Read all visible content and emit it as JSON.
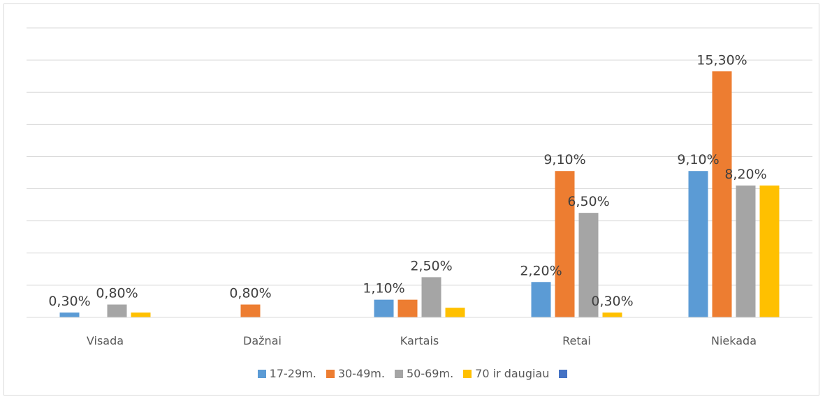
{
  "chart_data": {
    "type": "bar",
    "categories": [
      "Visada",
      "Dažnai",
      "Kartais",
      "Retai",
      "Niekada"
    ],
    "series": [
      {
        "name": "17-29m.",
        "color": "#5b9bd5",
        "values": [
          0.3,
          null,
          1.1,
          2.2,
          9.1
        ],
        "labels": [
          "0,30%",
          "",
          "1,10%",
          "2,20%",
          "9,10%"
        ]
      },
      {
        "name": "30-49m.",
        "color": "#ed7d31",
        "values": [
          null,
          0.8,
          1.1,
          9.1,
          15.3
        ],
        "labels": [
          "",
          "0,80%",
          "",
          "9,10%",
          "15,30%"
        ]
      },
      {
        "name": "50-69m.",
        "color": "#a5a5a5",
        "values": [
          0.8,
          null,
          2.5,
          6.5,
          8.2
        ],
        "labels": [
          "0,80%",
          "",
          "2,50%",
          "6,50%",
          "8,20%"
        ]
      },
      {
        "name": "70 ir daugiau",
        "color": "#ffc000",
        "values": [
          0.3,
          null,
          0.6,
          0.3,
          8.2
        ],
        "labels": [
          "",
          "",
          "",
          "0,30%",
          ""
        ]
      },
      {
        "name": "",
        "color": "#4472c4",
        "values": [
          null,
          null,
          null,
          null,
          null
        ],
        "labels": [
          "",
          "",
          "",
          "",
          ""
        ]
      }
    ],
    "ylim": [
      0,
      18
    ],
    "grid": true,
    "legend_position": "bottom"
  }
}
